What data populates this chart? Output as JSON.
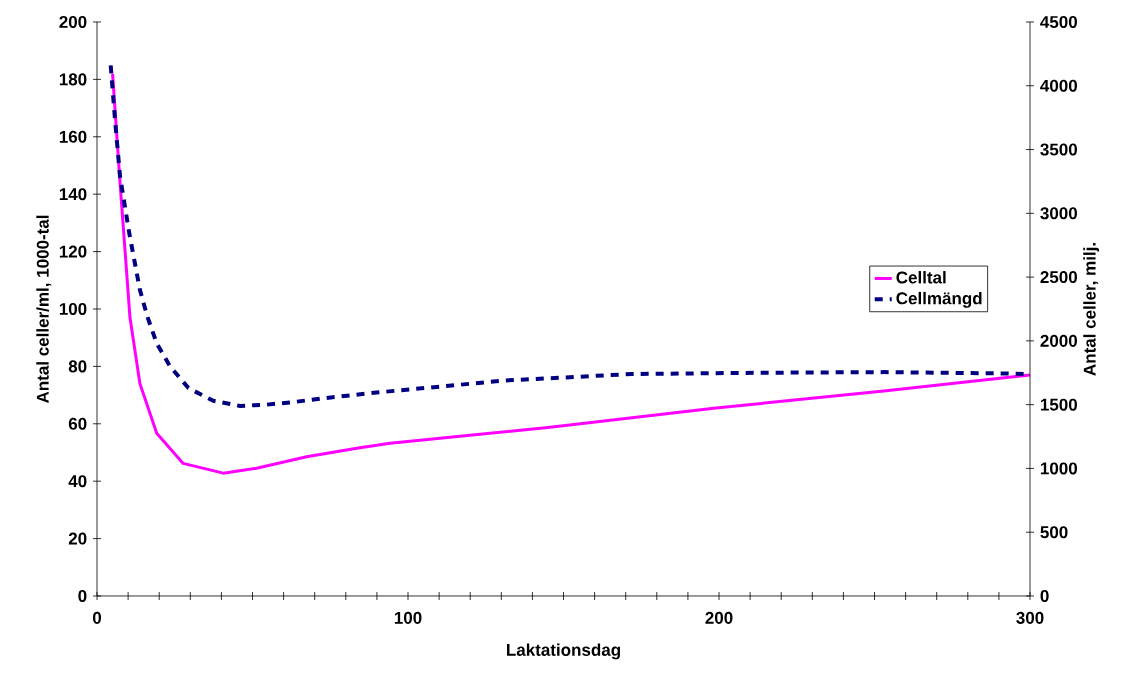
{
  "chart_data": {
    "type": "line",
    "xlabel": "Laktationsdag",
    "ylabel": "Antal celler/ml, 1000-tal",
    "y2label": "Antal celler, milj.",
    "xlim": [
      0,
      300
    ],
    "xticks": [
      0,
      {
        "value": 10,
        "label": null
      },
      {
        "value": 20,
        "label": null
      },
      {
        "value": 30,
        "label": null
      },
      {
        "value": 40,
        "label": null
      },
      {
        "value": 50,
        "label": null
      },
      {
        "value": 60,
        "label": null
      },
      {
        "value": 70,
        "label": null
      },
      {
        "value": 80,
        "label": null
      },
      {
        "value": 90,
        "label": null
      },
      100,
      {
        "value": 110,
        "label": null
      },
      {
        "value": 120,
        "label": null
      },
      {
        "value": 130,
        "label": null
      },
      {
        "value": 140,
        "label": null
      },
      {
        "value": 150,
        "label": null
      },
      {
        "value": 160,
        "label": null
      },
      {
        "value": 170,
        "label": null
      },
      {
        "value": 180,
        "label": null
      },
      {
        "value": 190,
        "label": null
      },
      200,
      {
        "value": 210,
        "label": null
      },
      {
        "value": 220,
        "label": null
      },
      {
        "value": 230,
        "label": null
      },
      {
        "value": 240,
        "label": null
      },
      {
        "value": 250,
        "label": null
      },
      {
        "value": 260,
        "label": null
      },
      {
        "value": 270,
        "label": null
      },
      {
        "value": 280,
        "label": null
      },
      {
        "value": 290,
        "label": null
      },
      300
    ],
    "ylim": [
      0,
      200
    ],
    "yticks": [
      0,
      20,
      40,
      60,
      80,
      100,
      120,
      140,
      160,
      180,
      200
    ],
    "y2lim": [
      0,
      4500
    ],
    "y2ticks": [
      0,
      500,
      1000,
      1500,
      2000,
      2500,
      3000,
      3500,
      4000,
      4500
    ],
    "legend": "right",
    "series": [
      {
        "name": "Celltal",
        "color": "#ff00ff",
        "line_style": "solid",
        "x": [
          5,
          7.4,
          9,
          10.6,
          13.8,
          19.2,
          27.7,
          40.6,
          51.3,
          67.4,
          83.5,
          94.2,
          145,
          199,
          253,
          300
        ],
        "values": [
          182,
          144,
          120.5,
          97,
          74,
          56.7,
          46.2,
          42.8,
          44.5,
          48.5,
          51.5,
          53.2,
          58.7,
          65.5,
          71.4,
          77
        ]
      },
      {
        "name": "Cellmängd",
        "color": "#000080",
        "line_style": "dashed",
        "axis": "y2",
        "x": [
          4.4,
          5.8,
          7.4,
          9,
          10.4,
          13.8,
          16.2,
          19.2,
          23.5,
          29.4,
          37.4,
          46,
          54.6,
          63.1,
          72.8,
          89.9,
          131.5,
          172,
          212.8,
          253,
          290,
          300
        ],
        "values": [
          4160,
          3730,
          3290,
          3050,
          2840,
          2400,
          2190,
          1980,
          1800,
          1630,
          1530,
          1490,
          1500,
          1520,
          1550,
          1595,
          1690,
          1740,
          1750,
          1755,
          1745,
          1740
        ]
      }
    ]
  }
}
